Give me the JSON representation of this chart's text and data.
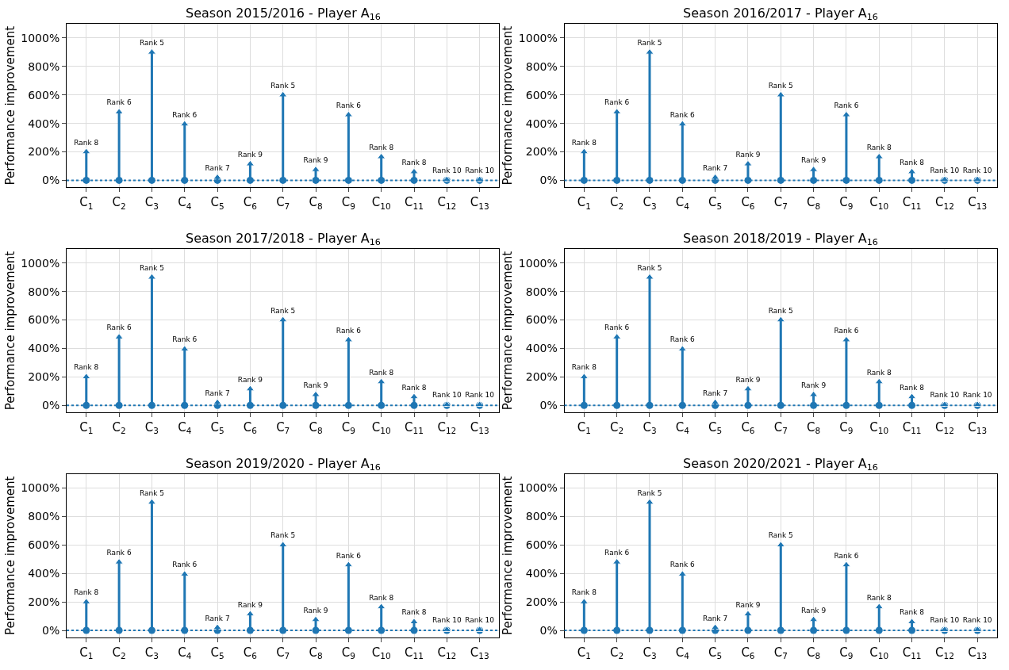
{
  "chart_data": [
    {
      "type": "lollipop",
      "title": "Season 2015/2016 - Player A$_{16}$",
      "ylabel": "Performance improvement",
      "categories": [
        "C$_{1}$",
        "C$_{2}$",
        "C$_{3}$",
        "C$_{4}$",
        "C$_{5}$",
        "C$_{6}$",
        "C$_{7}$",
        "C$_{8}$",
        "C$_{9}$",
        "C$_{10}$",
        "C$_{11}$",
        "C$_{12}$",
        "C$_{13}$"
      ],
      "series": [
        {
          "color": "#1f77b4",
          "marker": "triangle",
          "values": [
            200,
            480,
            900,
            395,
            20,
            115,
            600,
            75,
            460,
            165,
            60,
            5,
            5
          ],
          "value_labels": [
            "Rank 8",
            "Rank 6",
            "Rank 5",
            "Rank 6",
            "Rank 7",
            "Rank 9",
            "Rank 5",
            "Rank 9",
            "Rank 6",
            "Rank 8",
            "Rank 8",
            "Rank 10",
            "Rank 10"
          ]
        },
        {
          "type": "scatter",
          "color": "#1f77b4",
          "marker": "circle",
          "values": [
            0,
            0,
            0,
            0,
            0,
            0,
            0,
            0,
            0,
            0,
            0,
            0,
            0
          ]
        }
      ],
      "ylim": [
        -50,
        1100
      ],
      "yticks": [
        {
          "value": 0,
          "label": "0%"
        },
        {
          "value": 200,
          "label": "200%"
        },
        {
          "value": 400,
          "label": "400%"
        },
        {
          "value": 600,
          "label": "600%"
        },
        {
          "value": 800,
          "label": "800%"
        },
        {
          "value": 1000,
          "label": "1000%"
        }
      ],
      "grid": true,
      "ref_lines": [
        {
          "axis": "y",
          "value": 0,
          "color": "#1f77b4",
          "line_style": "dotted"
        }
      ]
    },
    {
      "type": "lollipop",
      "title": "Season 2016/2017 - Player A$_{16}$",
      "ylabel": "Performance improvement",
      "categories": [
        "C$_{1}$",
        "C$_{2}$",
        "C$_{3}$",
        "C$_{4}$",
        "C$_{5}$",
        "C$_{6}$",
        "C$_{7}$",
        "C$_{8}$",
        "C$_{9}$",
        "C$_{10}$",
        "C$_{11}$",
        "C$_{12}$",
        "C$_{13}$"
      ],
      "series": [
        {
          "color": "#1f77b4",
          "marker": "triangle",
          "values": [
            200,
            480,
            900,
            395,
            20,
            115,
            600,
            75,
            460,
            165,
            60,
            5,
            5
          ],
          "value_labels": [
            "Rank 8",
            "Rank 6",
            "Rank 5",
            "Rank 6",
            "Rank 7",
            "Rank 9",
            "Rank 5",
            "Rank 9",
            "Rank 6",
            "Rank 8",
            "Rank 8",
            "Rank 10",
            "Rank 10"
          ]
        },
        {
          "type": "scatter",
          "color": "#1f77b4",
          "marker": "circle",
          "values": [
            0,
            0,
            0,
            0,
            0,
            0,
            0,
            0,
            0,
            0,
            0,
            0,
            0
          ]
        }
      ],
      "ylim": [
        -50,
        1100
      ],
      "yticks": [
        {
          "value": 0,
          "label": "0%"
        },
        {
          "value": 200,
          "label": "200%"
        },
        {
          "value": 400,
          "label": "400%"
        },
        {
          "value": 600,
          "label": "600%"
        },
        {
          "value": 800,
          "label": "800%"
        },
        {
          "value": 1000,
          "label": "1000%"
        }
      ],
      "grid": true,
      "ref_lines": [
        {
          "axis": "y",
          "value": 0,
          "color": "#1f77b4",
          "line_style": "dotted"
        }
      ]
    },
    {
      "type": "lollipop",
      "title": "Season 2017/2018 - Player A$_{16}$",
      "ylabel": "Performance improvement",
      "categories": [
        "C$_{1}$",
        "C$_{2}$",
        "C$_{3}$",
        "C$_{4}$",
        "C$_{5}$",
        "C$_{6}$",
        "C$_{7}$",
        "C$_{8}$",
        "C$_{9}$",
        "C$_{10}$",
        "C$_{11}$",
        "C$_{12}$",
        "C$_{13}$"
      ],
      "series": [
        {
          "color": "#1f77b4",
          "marker": "triangle",
          "values": [
            200,
            480,
            900,
            395,
            20,
            115,
            600,
            75,
            460,
            165,
            60,
            5,
            5
          ],
          "value_labels": [
            "Rank 8",
            "Rank 6",
            "Rank 5",
            "Rank 6",
            "Rank 7",
            "Rank 9",
            "Rank 5",
            "Rank 9",
            "Rank 6",
            "Rank 8",
            "Rank 8",
            "Rank 10",
            "Rank 10"
          ]
        },
        {
          "type": "scatter",
          "color": "#1f77b4",
          "marker": "circle",
          "values": [
            0,
            0,
            0,
            0,
            0,
            0,
            0,
            0,
            0,
            0,
            0,
            0,
            0
          ]
        }
      ],
      "ylim": [
        -50,
        1100
      ],
      "yticks": [
        {
          "value": 0,
          "label": "0%"
        },
        {
          "value": 200,
          "label": "200%"
        },
        {
          "value": 400,
          "label": "400%"
        },
        {
          "value": 600,
          "label": "600%"
        },
        {
          "value": 800,
          "label": "800%"
        },
        {
          "value": 1000,
          "label": "1000%"
        }
      ],
      "grid": true,
      "ref_lines": [
        {
          "axis": "y",
          "value": 0,
          "color": "#1f77b4",
          "line_style": "dotted"
        }
      ]
    },
    {
      "type": "lollipop",
      "title": "Season 2018/2019 - Player A$_{16}$",
      "ylabel": "Performance improvement",
      "categories": [
        "C$_{1}$",
        "C$_{2}$",
        "C$_{3}$",
        "C$_{4}$",
        "C$_{5}$",
        "C$_{6}$",
        "C$_{7}$",
        "C$_{8}$",
        "C$_{9}$",
        "C$_{10}$",
        "C$_{11}$",
        "C$_{12}$",
        "C$_{13}$"
      ],
      "series": [
        {
          "color": "#1f77b4",
          "marker": "triangle",
          "values": [
            200,
            480,
            900,
            395,
            20,
            115,
            600,
            75,
            460,
            165,
            60,
            5,
            5
          ],
          "value_labels": [
            "Rank 8",
            "Rank 6",
            "Rank 5",
            "Rank 6",
            "Rank 7",
            "Rank 9",
            "Rank 5",
            "Rank 9",
            "Rank 6",
            "Rank 8",
            "Rank 8",
            "Rank 10",
            "Rank 10"
          ]
        },
        {
          "type": "scatter",
          "color": "#1f77b4",
          "marker": "circle",
          "values": [
            0,
            0,
            0,
            0,
            0,
            0,
            0,
            0,
            0,
            0,
            0,
            0,
            0
          ]
        }
      ],
      "ylim": [
        -50,
        1100
      ],
      "yticks": [
        {
          "value": 0,
          "label": "0%"
        },
        {
          "value": 200,
          "label": "200%"
        },
        {
          "value": 400,
          "label": "400%"
        },
        {
          "value": 600,
          "label": "600%"
        },
        {
          "value": 800,
          "label": "800%"
        },
        {
          "value": 1000,
          "label": "1000%"
        }
      ],
      "grid": true,
      "ref_lines": [
        {
          "axis": "y",
          "value": 0,
          "color": "#1f77b4",
          "line_style": "dotted"
        }
      ]
    },
    {
      "type": "lollipop",
      "title": "Season 2019/2020 - Player A$_{16}$",
      "ylabel": "Performance improvement",
      "categories": [
        "C$_{1}$",
        "C$_{2}$",
        "C$_{3}$",
        "C$_{4}$",
        "C$_{5}$",
        "C$_{6}$",
        "C$_{7}$",
        "C$_{8}$",
        "C$_{9}$",
        "C$_{10}$",
        "C$_{11}$",
        "C$_{12}$",
        "C$_{13}$"
      ],
      "series": [
        {
          "color": "#1f77b4",
          "marker": "triangle",
          "values": [
            200,
            480,
            900,
            395,
            20,
            115,
            600,
            75,
            460,
            165,
            60,
            5,
            5
          ],
          "value_labels": [
            "Rank 8",
            "Rank 6",
            "Rank 5",
            "Rank 6",
            "Rank 7",
            "Rank 9",
            "Rank 5",
            "Rank 9",
            "Rank 6",
            "Rank 8",
            "Rank 8",
            "Rank 10",
            "Rank 10"
          ]
        },
        {
          "type": "scatter",
          "color": "#1f77b4",
          "marker": "circle",
          "values": [
            0,
            0,
            0,
            0,
            0,
            0,
            0,
            0,
            0,
            0,
            0,
            0,
            0
          ]
        }
      ],
      "ylim": [
        -50,
        1100
      ],
      "yticks": [
        {
          "value": 0,
          "label": "0%"
        },
        {
          "value": 200,
          "label": "200%"
        },
        {
          "value": 400,
          "label": "400%"
        },
        {
          "value": 600,
          "label": "600%"
        },
        {
          "value": 800,
          "label": "800%"
        },
        {
          "value": 1000,
          "label": "1000%"
        }
      ],
      "grid": true,
      "ref_lines": [
        {
          "axis": "y",
          "value": 0,
          "color": "#1f77b4",
          "line_style": "dotted"
        }
      ]
    },
    {
      "type": "lollipop",
      "title": "Season 2020/2021 - Player A$_{16}$",
      "ylabel": "Performance improvement",
      "categories": [
        "C$_{1}$",
        "C$_{2}$",
        "C$_{3}$",
        "C$_{4}$",
        "C$_{5}$",
        "C$_{6}$",
        "C$_{7}$",
        "C$_{8}$",
        "C$_{9}$",
        "C$_{10}$",
        "C$_{11}$",
        "C$_{12}$",
        "C$_{13}$"
      ],
      "series": [
        {
          "color": "#1f77b4",
          "marker": "triangle",
          "values": [
            200,
            480,
            900,
            395,
            20,
            115,
            600,
            75,
            460,
            165,
            60,
            5,
            5
          ],
          "value_labels": [
            "Rank 8",
            "Rank 6",
            "Rank 5",
            "Rank 6",
            "Rank 7",
            "Rank 9",
            "Rank 5",
            "Rank 9",
            "Rank 6",
            "Rank 8",
            "Rank 8",
            "Rank 10",
            "Rank 10"
          ]
        },
        {
          "type": "scatter",
          "color": "#1f77b4",
          "marker": "circle",
          "values": [
            0,
            0,
            0,
            0,
            0,
            0,
            0,
            0,
            0,
            0,
            0,
            0,
            0
          ]
        }
      ],
      "ylim": [
        -50,
        1100
      ],
      "yticks": [
        {
          "value": 0,
          "label": "0%"
        },
        {
          "value": 200,
          "label": "200%"
        },
        {
          "value": 400,
          "label": "400%"
        },
        {
          "value": 600,
          "label": "600%"
        },
        {
          "value": 800,
          "label": "800%"
        },
        {
          "value": 1000,
          "label": "1000%"
        }
      ],
      "grid": true,
      "ref_lines": [
        {
          "axis": "y",
          "value": 0,
          "color": "#1f77b4",
          "line_style": "dotted"
        }
      ]
    }
  ]
}
